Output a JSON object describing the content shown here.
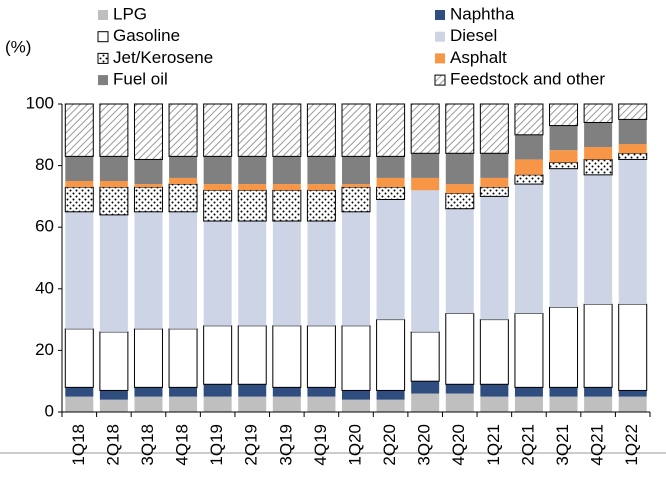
{
  "chart_data": {
    "type": "stacked_bar",
    "y_axis_label": "(%)",
    "categories": [
      "1Q18",
      "2Q18",
      "3Q18",
      "4Q18",
      "1Q19",
      "2Q19",
      "3Q19",
      "4Q19",
      "1Q20",
      "2Q20",
      "3Q20",
      "4Q20",
      "1Q21",
      "2Q21",
      "3Q21",
      "4Q21",
      "1Q22"
    ],
    "series": [
      {
        "name": "LPG",
        "color": "#bfbfbf",
        "values": [
          5,
          4,
          5,
          5,
          5,
          5,
          5,
          5,
          4,
          4,
          6,
          6,
          5,
          5,
          5,
          5,
          5
        ]
      },
      {
        "name": "Naphtha",
        "color": "#2f4e7f",
        "values": [
          3,
          3,
          3,
          3,
          4,
          4,
          3,
          3,
          3,
          3,
          4,
          3,
          4,
          3,
          3,
          3,
          2
        ]
      },
      {
        "name": "Gasoline",
        "color": "#ffffff",
        "border": "#000000",
        "values": [
          19,
          19,
          19,
          19,
          19,
          19,
          20,
          20,
          21,
          23,
          16,
          23,
          21,
          24,
          26,
          27,
          28
        ]
      },
      {
        "name": "Diesel",
        "color": "#ccd4e6",
        "values": [
          38,
          38,
          38,
          38,
          34,
          34,
          34,
          34,
          37,
          39,
          46,
          34,
          40,
          42,
          45,
          42,
          47
        ]
      },
      {
        "name": "Jet/Kerosene",
        "color": "#ffffff",
        "border": "#000000",
        "pattern": "dots",
        "values": [
          8,
          9,
          8,
          9,
          10,
          10,
          10,
          10,
          8,
          4,
          0,
          5,
          3,
          3,
          2,
          5,
          2
        ]
      },
      {
        "name": "Asphalt",
        "color": "#f79646",
        "values": [
          2,
          2,
          1,
          2,
          2,
          2,
          2,
          2,
          1,
          3,
          4,
          3,
          3,
          5,
          4,
          4,
          3
        ]
      },
      {
        "name": "Fuel oil",
        "color": "#808080",
        "values": [
          8,
          8,
          8,
          7,
          9,
          9,
          9,
          9,
          9,
          7,
          8,
          10,
          8,
          8,
          8,
          8,
          8
        ]
      },
      {
        "name": "Feedstock and other",
        "color": "#ffffff",
        "border": "#000000",
        "pattern": "hatch",
        "values": [
          17,
          17,
          18,
          17,
          17,
          17,
          17,
          17,
          17,
          17,
          16,
          16,
          16,
          10,
          7,
          6,
          5
        ]
      }
    ],
    "ylim": [
      0,
      100
    ],
    "yticks": [
      0,
      20,
      40,
      60,
      80,
      100
    ],
    "grid": false
  }
}
